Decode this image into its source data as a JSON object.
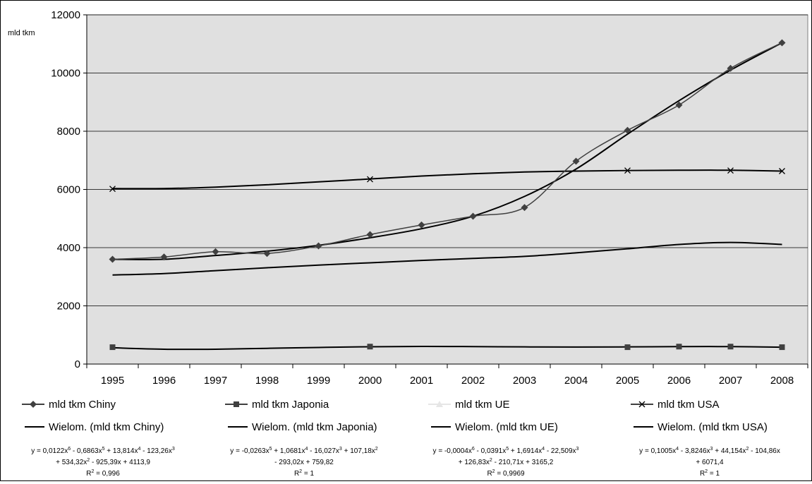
{
  "chart_data": {
    "type": "line",
    "title": "",
    "ylabel": "mld tkm",
    "xlabel": "",
    "categories": [
      "1995",
      "1996",
      "1997",
      "1998",
      "1999",
      "2000",
      "2001",
      "2002",
      "2003",
      "2004",
      "2005",
      "2006",
      "2007",
      "2008"
    ],
    "ylim": [
      0,
      12000
    ],
    "yticks": [
      0,
      2000,
      4000,
      6000,
      8000,
      10000,
      12000
    ],
    "grid": true,
    "plot_background": "#e0e0e0",
    "legend_position": "bottom",
    "series": [
      {
        "name": "mld tkm Chiny",
        "marker": "diamond",
        "color": "#404040",
        "values": [
          3600,
          3680,
          3860,
          3800,
          4060,
          4450,
          4780,
          5080,
          5380,
          6970,
          8030,
          8900,
          10160,
          11040
        ]
      },
      {
        "name": "mld tkm Japonia",
        "marker": "square",
        "color": "#404040",
        "values": [
          580,
          null,
          null,
          null,
          null,
          600,
          null,
          null,
          null,
          null,
          580,
          600,
          600,
          580
        ]
      },
      {
        "name": "mld tkm UE",
        "marker": "triangle",
        "color": "#e6e6e6",
        "values": [
          null,
          null,
          null,
          null,
          null,
          null,
          null,
          null,
          null,
          null,
          null,
          null,
          null,
          null
        ]
      },
      {
        "name": "mld tkm USA",
        "marker": "x",
        "color": "#000000",
        "values": [
          6020,
          null,
          null,
          null,
          null,
          6350,
          null,
          null,
          null,
          null,
          6650,
          null,
          6650,
          6630
        ]
      }
    ],
    "trendlines": [
      {
        "name": "Wielom. (mld tkm Chiny)",
        "equation_lines": [
          "y = 0,0122x<sup>6</sup> - 0,6863x<sup>5</sup> + 13,814x<sup>4</sup> - 123,26x<sup>3</sup>",
          "+ 534,32x<sup>2</sup> - 925,39x + 4113,9"
        ],
        "r2": "R<sup>2</sup> = 0,996",
        "values": [
          3600,
          3600,
          3730,
          3880,
          4080,
          4340,
          4650,
          5080,
          5760,
          6700,
          7900,
          9050,
          10100,
          11040
        ]
      },
      {
        "name": "Wielom. (mld tkm Japonia)",
        "equation_lines": [
          "y = -0,0263x<sup>5</sup> + 1,0681x<sup>4</sup> - 16,027x<sup>3</sup> + 107,18x<sup>2</sup>",
          "- 293,02x + 759,82"
        ],
        "r2": "R<sup>2</sup> = 1",
        "values": [
          560,
          510,
          510,
          540,
          570,
          595,
          605,
          600,
          590,
          585,
          590,
          600,
          600,
          580
        ]
      },
      {
        "name": "Wielom. (mld tkm UE)",
        "equation_lines": [
          "y = -0,0004x<sup>6</sup> - 0,0391x<sup>5</sup> + 1,6914x<sup>4</sup> - 22,509x<sup>3</sup>",
          "+ 126,83x<sup>2</sup> - 210,71x + 3165,2"
        ],
        "r2": "R<sup>2</sup> = 0,9969",
        "values": [
          3060,
          3110,
          3210,
          3310,
          3400,
          3480,
          3560,
          3630,
          3700,
          3820,
          3960,
          4110,
          4180,
          4110
        ]
      },
      {
        "name": "Wielom. (mld tkm USA)",
        "equation_lines": [
          "y = 0,1005x<sup>4</sup> - 3,8246x<sup>3</sup> + 44,154x<sup>2</sup> - 104,86x",
          "+ 6071,4"
        ],
        "r2": "R<sup>2</sup> = 1",
        "values": [
          6030,
          6030,
          6080,
          6160,
          6260,
          6360,
          6460,
          6540,
          6600,
          6630,
          6650,
          6660,
          6660,
          6630
        ]
      }
    ]
  }
}
